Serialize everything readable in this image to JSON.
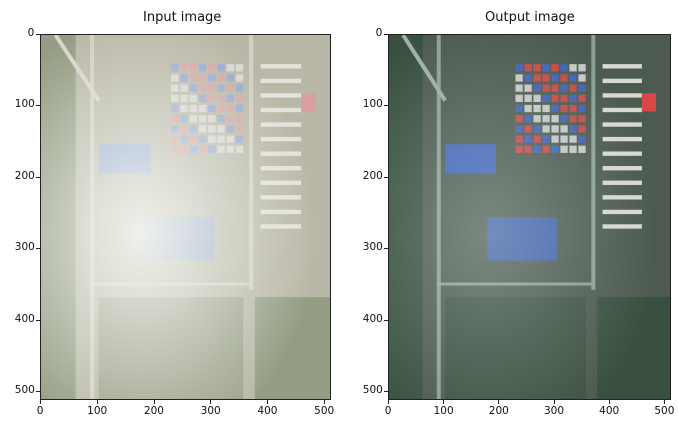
{
  "panels": [
    {
      "id": "input",
      "title": "Input image",
      "xticks": [
        "0",
        "100",
        "200",
        "300",
        "400",
        "500"
      ],
      "yticks": [
        "0",
        "100",
        "200",
        "300",
        "400",
        "500"
      ],
      "x_range": [
        0,
        511
      ],
      "y_range": [
        0,
        511
      ],
      "palette": {
        "ground": "#b9b8a8",
        "haze": "#f2f4ee",
        "vegetation": "#7c8a6c",
        "rooftop_blue": "#8fa6d8",
        "rooftop_red": "#d9a0a0",
        "road": "#d8d7cc"
      }
    },
    {
      "id": "output",
      "title": "Output image",
      "xticks": [
        "0",
        "100",
        "200",
        "300",
        "400",
        "500"
      ],
      "yticks": [
        "0",
        "100",
        "200",
        "300",
        "400",
        "500"
      ],
      "x_range": [
        0,
        511
      ],
      "y_range": [
        0,
        511
      ],
      "palette": {
        "ground": "#4d5a50",
        "haze": "#cfe0dc",
        "vegetation": "#2f4a34",
        "rooftop_blue": "#3f64c8",
        "rooftop_red": "#d84848",
        "road": "#9fb0aa"
      }
    }
  ]
}
